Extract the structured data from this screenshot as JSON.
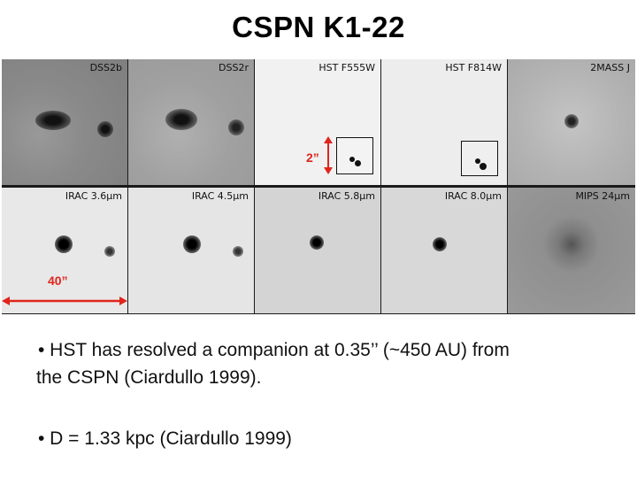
{
  "title": "CSPN K1-22",
  "panels_top": [
    {
      "label": "DSS2b",
      "tone": "#8d8d8d"
    },
    {
      "label": "DSS2r",
      "tone": "#a3a3a3"
    },
    {
      "label": "HST F555W",
      "tone": "#f1f1f1"
    },
    {
      "label": "HST F814W",
      "tone": "#ededed"
    },
    {
      "label": "2MASS J",
      "tone": "#b8b8b8"
    }
  ],
  "panels_bottom": [
    {
      "label": "IRAC 3.6µm",
      "tone": "#e8e8e8"
    },
    {
      "label": "IRAC 4.5µm",
      "tone": "#e5e5e5"
    },
    {
      "label": "IRAC 5.8µm",
      "tone": "#d4d4d4"
    },
    {
      "label": "IRAC 8.0µm",
      "tone": "#d8d8d8"
    },
    {
      "label": "MIPS 24µm",
      "tone": "#9a9a9a"
    }
  ],
  "scale_small": "2”",
  "scale_large": "40”",
  "bullet1_line1": "•  HST has resolved a companion at 0.35’’ (~450 AU) from",
  "bullet1_line2": "the CSPN (Ciardullo 1999).",
  "bullet2": "•  D = 1.33 kpc (Ciardullo 1999)",
  "colors": {
    "accent": "#e0241b",
    "text": "#111111"
  }
}
